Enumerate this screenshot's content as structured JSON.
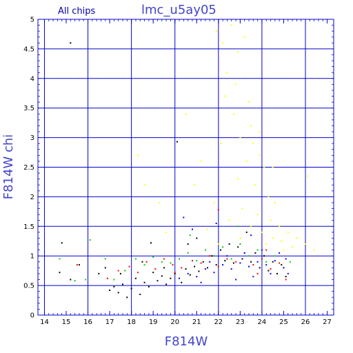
{
  "chart_data": {
    "type": "scatter",
    "title": "lmc_u5ay05",
    "annotation": "All chips",
    "xlabel": "F814W",
    "ylabel": "F814W chi",
    "xlim": [
      13.7,
      27.3
    ],
    "ylim": [
      0,
      5
    ],
    "x_ticks": [
      "14",
      "15",
      "16",
      "17",
      "18",
      "19",
      "20",
      "21",
      "22",
      "23",
      "24",
      "25",
      "26",
      "27"
    ],
    "y_ticks": [
      "0",
      "0.5",
      "1",
      "1.5",
      "2",
      "2.5",
      "3",
      "3.5",
      "4",
      "4.5",
      "5"
    ],
    "grid": true,
    "colors": {
      "frame": "#0000cc",
      "grid": "#0000cc",
      "title": "#4444cc"
    },
    "series": [
      {
        "color": "#000000",
        "points": [
          [
            15.2,
            4.6
          ],
          [
            14.8,
            1.22
          ],
          [
            14.7,
            0.72
          ],
          [
            15.2,
            0.6
          ],
          [
            15.6,
            0.85
          ],
          [
            16.8,
            0.8
          ],
          [
            17.0,
            0.42
          ],
          [
            17.2,
            0.48
          ],
          [
            17.4,
            0.38
          ],
          [
            17.6,
            0.52
          ],
          [
            17.8,
            0.3
          ],
          [
            18.0,
            0.45
          ],
          [
            18.2,
            0.62
          ],
          [
            18.4,
            0.35
          ],
          [
            18.6,
            0.55
          ],
          [
            18.8,
            0.48
          ],
          [
            19.0,
            0.72
          ],
          [
            19.2,
            0.58
          ],
          [
            19.4,
            0.66
          ],
          [
            19.6,
            0.52
          ],
          [
            19.8,
            0.62
          ],
          [
            20.0,
            0.7
          ],
          [
            20.1,
            2.93
          ],
          [
            20.3,
            0.55
          ],
          [
            20.5,
            0.78
          ],
          [
            20.7,
            0.68
          ],
          [
            20.9,
            0.82
          ],
          [
            21.1,
            0.74
          ],
          [
            21.3,
            0.9
          ],
          [
            21.5,
            0.8
          ],
          [
            21.7,
            1.0
          ],
          [
            21.9,
            0.85
          ],
          [
            22.1,
            1.1
          ],
          [
            22.3,
            0.92
          ],
          [
            22.5,
            1.2
          ],
          [
            22.7,
            0.88
          ],
          [
            22.9,
            1.15
          ],
          [
            23.1,
            0.95
          ],
          [
            23.3,
            1.4
          ],
          [
            23.5,
            0.9
          ],
          [
            23.7,
            1.05
          ],
          [
            23.9,
            0.8
          ],
          [
            24.1,
            1.0
          ],
          [
            24.3,
            0.75
          ],
          [
            24.5,
            0.9
          ],
          [
            24.7,
            0.7
          ],
          [
            24.9,
            0.85
          ],
          [
            25.1,
            0.65
          ],
          [
            17.5,
            0.7
          ],
          [
            18.5,
            0.9
          ],
          [
            19.5,
            0.8
          ],
          [
            20.6,
            1.2
          ],
          [
            21.0,
            1.3
          ],
          [
            16.5,
            0.7
          ],
          [
            18.9,
            1.22
          ]
        ]
      },
      {
        "color": "#ff0000",
        "points": [
          [
            15.5,
            0.85
          ],
          [
            16.9,
            0.62
          ],
          [
            17.4,
            0.75
          ],
          [
            17.9,
            0.82
          ],
          [
            18.3,
            0.72
          ],
          [
            18.7,
            0.9
          ],
          [
            19.1,
            0.78
          ],
          [
            19.5,
            0.95
          ],
          [
            19.9,
            0.85
          ],
          [
            20.3,
            0.8
          ],
          [
            20.8,
            0.92
          ],
          [
            21.2,
            0.88
          ],
          [
            21.6,
            1.0
          ],
          [
            22.0,
            0.82
          ],
          [
            22.4,
            0.95
          ],
          [
            22.8,
            0.9
          ],
          [
            23.2,
            1.05
          ],
          [
            23.6,
            0.85
          ],
          [
            24.0,
            0.95
          ],
          [
            24.4,
            0.78
          ],
          [
            24.8,
            0.88
          ],
          [
            25.1,
            0.6
          ],
          [
            22.0,
            1.78
          ],
          [
            20.0,
            0.72
          ],
          [
            23.8,
            0.7
          ],
          [
            24.2,
            1.1
          ]
        ]
      },
      {
        "color": "#00cc00",
        "points": [
          [
            14.7,
            0.95
          ],
          [
            15.4,
            0.58
          ],
          [
            15.9,
            0.6
          ],
          [
            16.1,
            1.27
          ],
          [
            16.8,
            0.95
          ],
          [
            17.2,
            0.6
          ],
          [
            17.7,
            0.75
          ],
          [
            18.2,
            0.95
          ],
          [
            18.6,
            0.85
          ],
          [
            19.0,
            0.98
          ],
          [
            19.4,
            0.9
          ],
          [
            19.8,
            0.88
          ],
          [
            20.2,
            0.95
          ],
          [
            20.6,
            1.05
          ],
          [
            21.0,
            0.92
          ],
          [
            21.4,
            1.1
          ],
          [
            21.8,
            1.0
          ],
          [
            22.2,
            1.15
          ],
          [
            22.6,
            0.95
          ],
          [
            23.0,
            1.2
          ],
          [
            23.4,
            1.0
          ],
          [
            23.8,
            1.1
          ],
          [
            24.2,
            0.9
          ],
          [
            24.6,
            1.0
          ],
          [
            25.0,
            0.8
          ],
          [
            25.3,
            0.9
          ],
          [
            20.7,
            1.35
          ],
          [
            22.9,
            1.5
          ]
        ]
      },
      {
        "color": "#0000ff",
        "points": [
          [
            20.2,
            0.62
          ],
          [
            20.6,
            0.7
          ],
          [
            21.0,
            0.65
          ],
          [
            21.4,
            0.78
          ],
          [
            21.8,
            0.72
          ],
          [
            22.2,
            0.85
          ],
          [
            22.6,
            0.78
          ],
          [
            23.0,
            0.88
          ],
          [
            23.4,
            0.82
          ],
          [
            23.8,
            0.9
          ],
          [
            24.2,
            0.85
          ],
          [
            24.6,
            0.92
          ],
          [
            25.0,
            0.8
          ],
          [
            25.2,
            0.7
          ],
          [
            21.6,
            0.9
          ],
          [
            22.4,
            1.0
          ],
          [
            23.2,
            1.05
          ],
          [
            24.0,
            1.1
          ],
          [
            24.4,
            0.7
          ],
          [
            22.8,
            0.6
          ],
          [
            23.6,
            0.65
          ],
          [
            25.1,
            0.95
          ],
          [
            20.4,
            1.65
          ],
          [
            20.8,
            1.45
          ],
          [
            21.9,
            1.55
          ],
          [
            23.5,
            1.35
          ],
          [
            21.2,
            0.55
          ],
          [
            24.8,
            1.05
          ]
        ]
      },
      {
        "color": "#ffff00",
        "points": [
          [
            21.9,
            4.8
          ],
          [
            22.2,
            4.6
          ],
          [
            22.6,
            4.9
          ],
          [
            22.9,
            4.45
          ],
          [
            23.2,
            4.7
          ],
          [
            22.4,
            4.1
          ],
          [
            22.8,
            3.9
          ],
          [
            23.4,
            3.6
          ],
          [
            23.5,
            3.2
          ],
          [
            22.7,
            3.4
          ],
          [
            23.0,
            3.0
          ],
          [
            23.6,
            2.9
          ],
          [
            23.9,
            2.7
          ],
          [
            24.1,
            2.5
          ],
          [
            23.3,
            2.6
          ],
          [
            22.9,
            2.3
          ],
          [
            23.7,
            2.2
          ],
          [
            24.3,
            2.0
          ],
          [
            24.6,
            1.9
          ],
          [
            23.1,
            1.8
          ],
          [
            23.8,
            1.7
          ],
          [
            24.4,
            1.6
          ],
          [
            24.8,
            1.5
          ],
          [
            25.2,
            1.4
          ],
          [
            25.6,
            1.3
          ],
          [
            26.0,
            1.2
          ],
          [
            26.4,
            1.1
          ],
          [
            22.5,
            1.6
          ],
          [
            21.5,
            1.45
          ],
          [
            20.5,
            3.4
          ],
          [
            20.9,
            2.2
          ],
          [
            21.2,
            2.6
          ],
          [
            18.3,
            2.7
          ],
          [
            18.6,
            2.2
          ],
          [
            19.3,
            1.9
          ],
          [
            19.6,
            1.4
          ],
          [
            24.9,
            1.25
          ],
          [
            25.4,
            1.15
          ],
          [
            26.1,
            2.35
          ],
          [
            23.0,
            1.3
          ],
          [
            24.0,
            1.4
          ],
          [
            24.2,
            1.2
          ],
          [
            24.5,
            1.3
          ],
          [
            25.0,
            1.1
          ],
          [
            23.5,
            1.5
          ],
          [
            22.0,
            1.2
          ],
          [
            21.8,
            1.9
          ],
          [
            23.9,
            3.1
          ],
          [
            24.5,
            2.5
          ],
          [
            22.3,
            3.7
          ],
          [
            22.1,
            2.9
          ]
        ]
      }
    ]
  }
}
